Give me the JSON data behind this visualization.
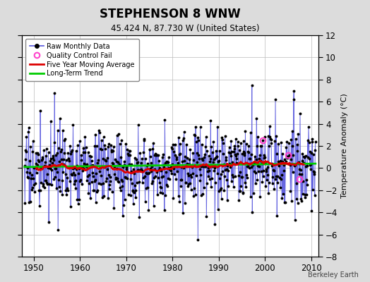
{
  "title": "STEPHENSON 8 WNW",
  "subtitle": "45.424 N, 87.730 W (United States)",
  "ylabel": "Temperature Anomaly (°C)",
  "watermark": "Berkeley Earth",
  "xlim": [
    1947.5,
    2011.5
  ],
  "ylim": [
    -8,
    12
  ],
  "yticks": [
    -8,
    -6,
    -4,
    -2,
    0,
    2,
    4,
    6,
    8,
    10,
    12
  ],
  "xticks": [
    1950,
    1960,
    1970,
    1980,
    1990,
    2000,
    2010
  ],
  "bg_color": "#dcdcdc",
  "plot_bg_color": "#ffffff",
  "raw_line_color": "#5555dd",
  "raw_dot_color": "#000000",
  "moving_avg_color": "#dd0000",
  "trend_color": "#00cc00",
  "qc_fail_color": "#ff44cc",
  "grid_color": "#bbbbbb",
  "seed": 17
}
